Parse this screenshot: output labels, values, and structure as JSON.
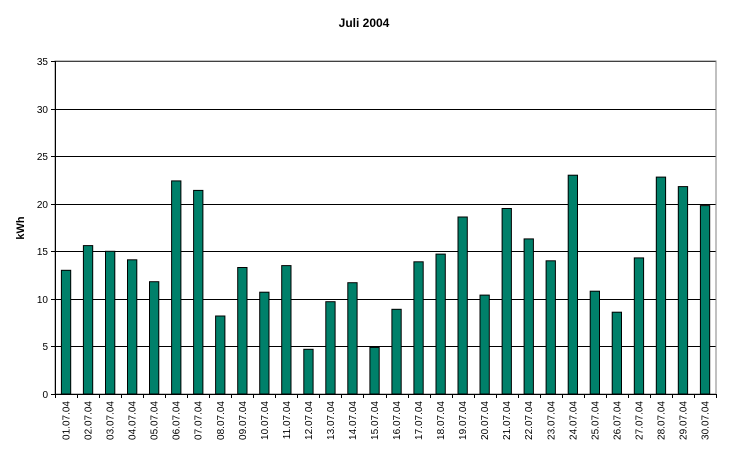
{
  "chart_data": {
    "type": "bar",
    "title": "Juli 2004",
    "xlabel": "",
    "ylabel": "kWh",
    "ylim": [
      0,
      35
    ],
    "yticks": [
      0,
      5,
      10,
      15,
      20,
      25,
      30,
      35
    ],
    "grid": true,
    "legend": "none",
    "bar_color": "#00806a",
    "categories": [
      "01.07.04",
      "02.07.04",
      "03.07.04",
      "04.07.04",
      "05.07.04",
      "06.07.04",
      "07.07.04",
      "08.07.04",
      "09.07.04",
      "10.07.04",
      "11.07.04",
      "12.07.04",
      "13.07.04",
      "14.07.04",
      "15.07.04",
      "16.07.04",
      "17.07.04",
      "18.07.04",
      "19.07.04",
      "20.07.04",
      "21.07.04",
      "22.07.04",
      "23.07.04",
      "24.07.04",
      "25.07.04",
      "26.07.04",
      "27.07.04",
      "28.07.04",
      "29.07.04",
      "30.07.04"
    ],
    "values": [
      13.0,
      15.6,
      15.0,
      14.1,
      11.8,
      22.4,
      21.4,
      8.2,
      13.3,
      10.7,
      13.5,
      4.7,
      9.7,
      11.7,
      4.9,
      8.9,
      13.9,
      14.7,
      18.6,
      10.4,
      19.5,
      16.3,
      14.0,
      23.0,
      10.8,
      8.6,
      14.3,
      22.8,
      21.8,
      19.8
    ]
  }
}
